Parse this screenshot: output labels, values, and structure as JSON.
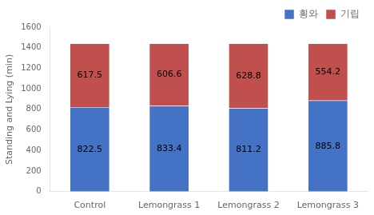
{
  "chart_data": {
    "type": "bar",
    "stacked": true,
    "categories": [
      "Control",
      "Lemongrass 1",
      "Lemongrass 2",
      "Lemongrass 3"
    ],
    "series": [
      {
        "name": "횡와",
        "color": "#4472C4",
        "values": [
          822.5,
          833.4,
          811.2,
          885.8
        ]
      },
      {
        "name": "기립",
        "color": "#C0504D",
        "values": [
          617.5,
          606.6,
          628.8,
          554.2
        ]
      }
    ],
    "ylabel": "Standing and Lying (min)",
    "ylim": [
      0,
      1600
    ],
    "yticks": [
      0,
      200,
      400,
      600,
      800,
      1000,
      1200,
      1400,
      1600
    ],
    "grid": false,
    "legend": "upper right",
    "data_labels": true
  }
}
